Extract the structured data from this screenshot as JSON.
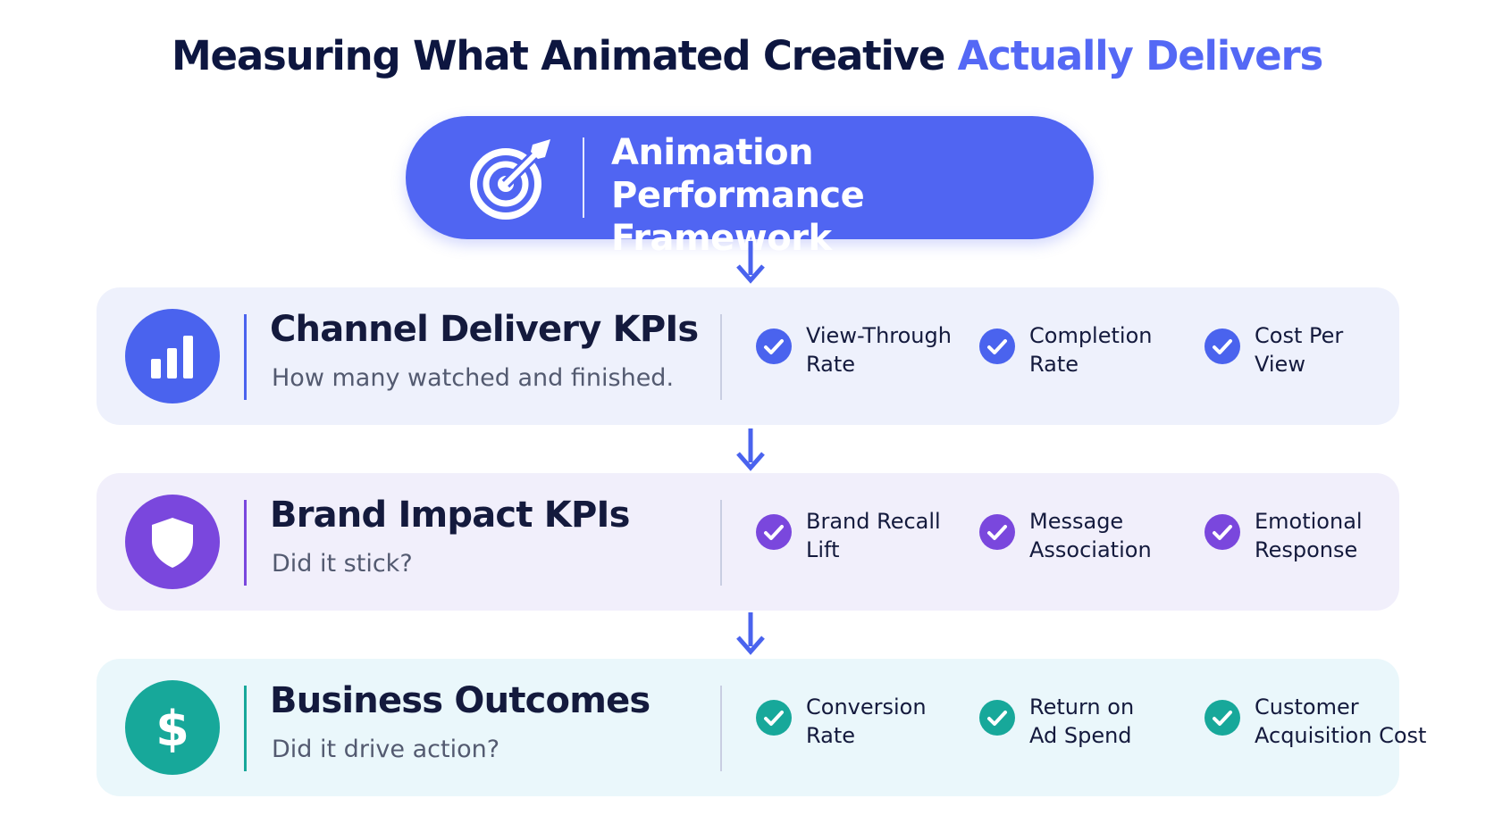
{
  "title": {
    "main": "Measuring What Animated Creative",
    "accent": "Actually Delivers"
  },
  "framework": {
    "line1": "Animation Performance",
    "line2": "Framework"
  },
  "colors": {
    "primary": "#5065f2",
    "blue_accent": "#4a63ee",
    "purple_accent": "#7a47dd",
    "teal_accent": "#17a89a",
    "title_dark": "#0d1640"
  },
  "rows": [
    {
      "icon": "bar-chart-icon",
      "title": "Channel Delivery KPIs",
      "subtitle": "How many watched and finished.",
      "kpis": [
        {
          "line1": "View-Through",
          "line2": "Rate"
        },
        {
          "line1": "Completion",
          "line2": "Rate"
        },
        {
          "line1": "Cost Per",
          "line2": "View"
        }
      ]
    },
    {
      "icon": "shield-icon",
      "title": "Brand Impact KPIs",
      "subtitle": "Did it stick?",
      "kpis": [
        {
          "line1": "Brand Recall",
          "line2": "Lift"
        },
        {
          "line1": "Message",
          "line2": "Association"
        },
        {
          "line1": "Emotional",
          "line2": "Response"
        }
      ]
    },
    {
      "icon": "dollar-icon",
      "title": "Business Outcomes",
      "subtitle": "Did it drive action?",
      "kpis": [
        {
          "line1": "Conversion",
          "line2": "Rate"
        },
        {
          "line1": "Return on",
          "line2": "Ad Spend"
        },
        {
          "line1": "Customer",
          "line2": "Acquisition Cost"
        }
      ]
    }
  ]
}
